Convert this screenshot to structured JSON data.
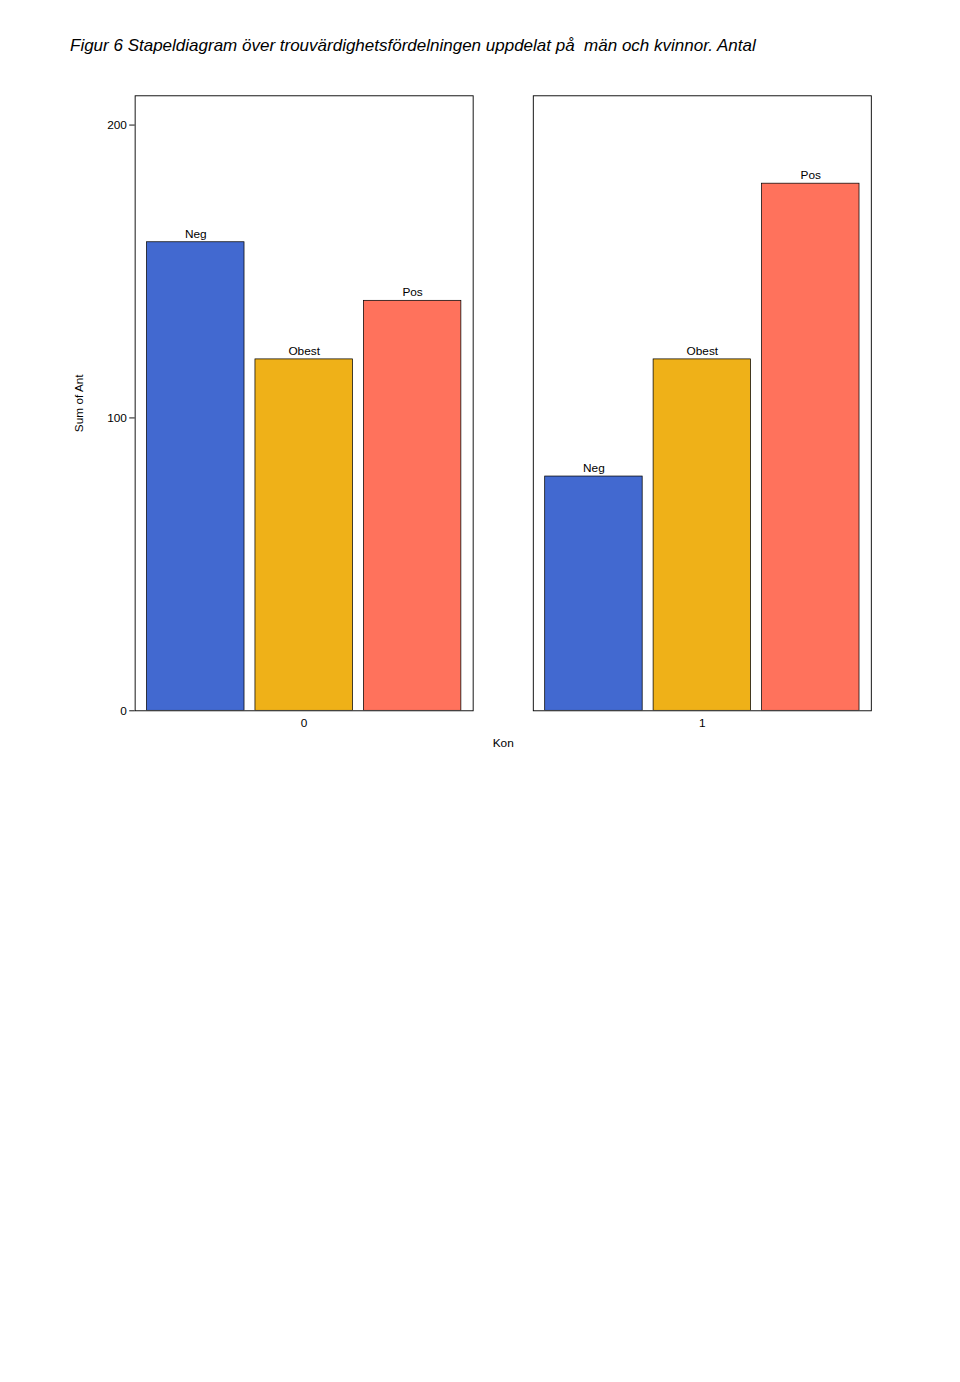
{
  "chart_data": {
    "type": "bar",
    "title": "Figur 6 Stapeldiagram över trouvärdighetsfördelningen uppdelat på  män och kvinnor. Antal",
    "categories": [
      "0",
      "1"
    ],
    "series": [
      {
        "name": "Neg",
        "values": [
          160,
          80
        ]
      },
      {
        "name": "Obest",
        "values": [
          120,
          120
        ]
      },
      {
        "name": "Pos",
        "values": [
          140,
          180
        ]
      }
    ],
    "xlabel": "Kon",
    "ylabel": "Sum of Ant",
    "ylim": [
      0,
      210
    ],
    "yticks": [
      0,
      100,
      200
    ]
  }
}
